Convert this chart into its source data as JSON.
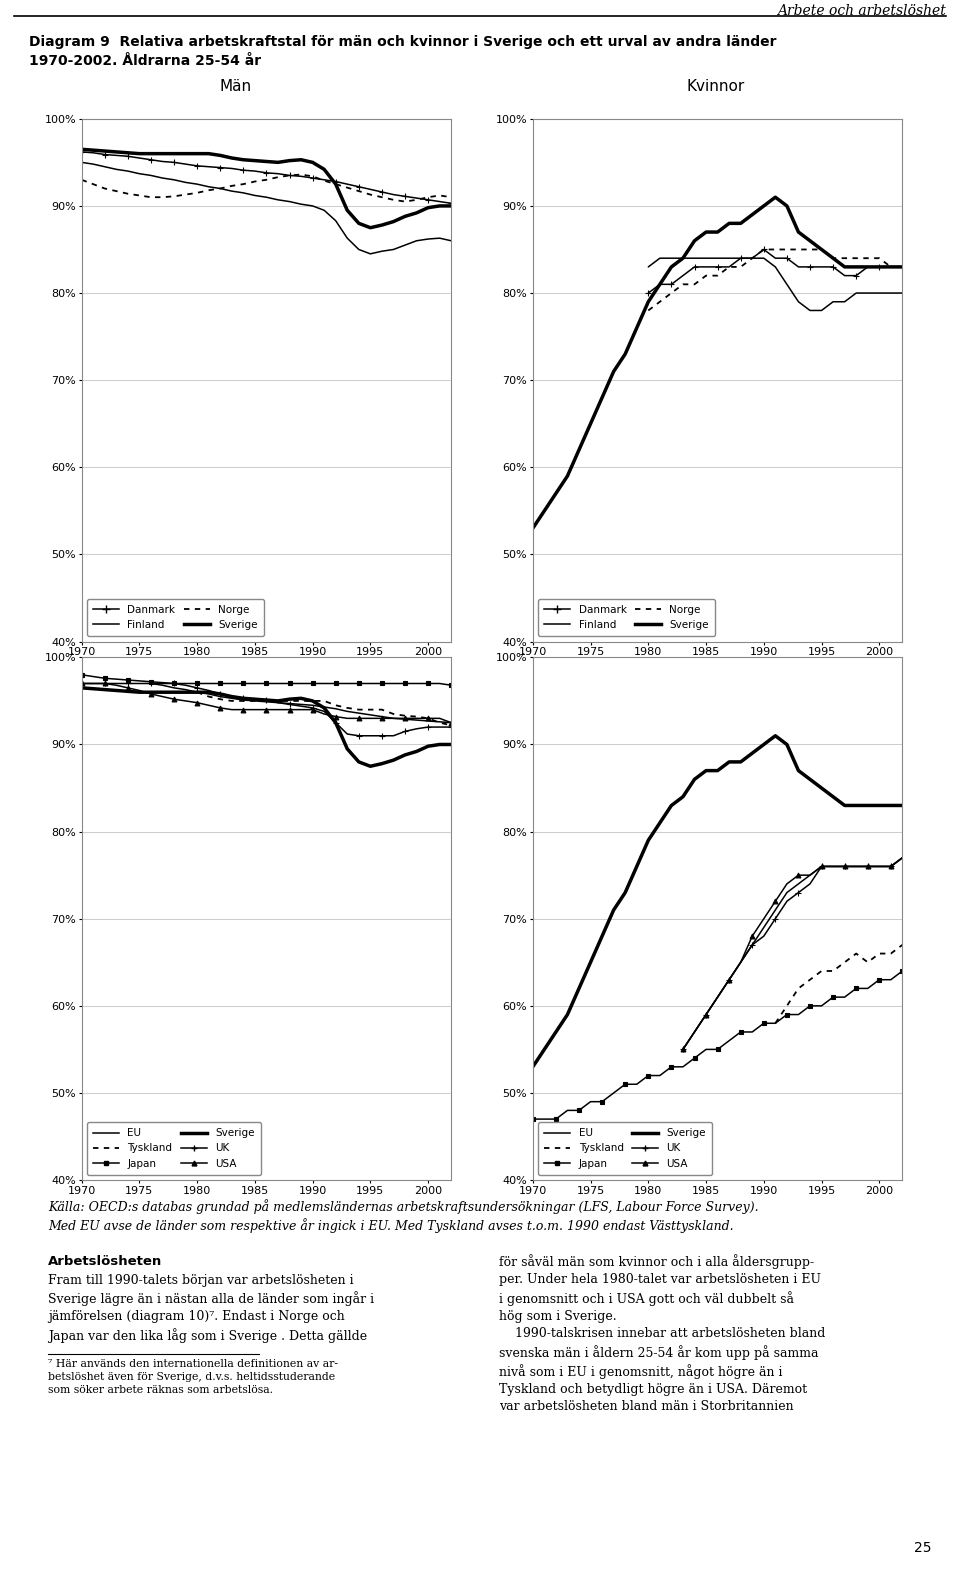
{
  "title_line1": "Diagram 9  Relativa arbetskraftstal för män och kvinnor i Sverige och ett urval av andra länder",
  "title_line2": "1970-2002. Åldrarna 25-54 år",
  "header_right": "Arbete och arbetslöshet",
  "col_label_man": "Män",
  "col_label_kvinna": "Kvinnor",
  "years_full": [
    1970,
    1971,
    1972,
    1973,
    1974,
    1975,
    1976,
    1977,
    1978,
    1979,
    1980,
    1981,
    1982,
    1983,
    1984,
    1985,
    1986,
    1987,
    1988,
    1989,
    1990,
    1991,
    1992,
    1993,
    1994,
    1995,
    1996,
    1997,
    1998,
    1999,
    2000,
    2001,
    2002
  ],
  "nordic_men_Danmark": [
    96.2,
    96.1,
    95.9,
    95.8,
    95.7,
    95.5,
    95.3,
    95.1,
    95.0,
    94.8,
    94.6,
    94.5,
    94.4,
    94.3,
    94.1,
    94.0,
    93.8,
    93.7,
    93.5,
    93.4,
    93.2,
    93.0,
    92.8,
    92.5,
    92.2,
    91.9,
    91.6,
    91.3,
    91.1,
    90.9,
    90.7,
    90.5,
    90.3
  ],
  "nordic_men_Finland": [
    95.0,
    94.8,
    94.5,
    94.2,
    94.0,
    93.7,
    93.5,
    93.2,
    93.0,
    92.7,
    92.5,
    92.2,
    92.0,
    91.7,
    91.5,
    91.2,
    91.0,
    90.7,
    90.5,
    90.2,
    90.0,
    89.5,
    88.3,
    86.3,
    85.0,
    84.5,
    84.8,
    85.0,
    85.5,
    86.0,
    86.2,
    86.3,
    86.0
  ],
  "nordic_men_Norge": [
    93.0,
    92.5,
    92.0,
    91.7,
    91.4,
    91.2,
    91.0,
    91.0,
    91.1,
    91.3,
    91.5,
    91.8,
    92.0,
    92.3,
    92.5,
    92.8,
    93.0,
    93.3,
    93.5,
    93.6,
    93.4,
    92.9,
    92.5,
    92.1,
    91.7,
    91.3,
    91.0,
    90.7,
    90.5,
    90.7,
    91.0,
    91.2,
    91.0
  ],
  "nordic_men_Sverige": [
    96.5,
    96.4,
    96.3,
    96.2,
    96.1,
    96.0,
    96.0,
    96.0,
    96.0,
    96.0,
    96.0,
    96.0,
    95.8,
    95.5,
    95.3,
    95.2,
    95.1,
    95.0,
    95.2,
    95.3,
    95.0,
    94.2,
    92.5,
    89.5,
    88.0,
    87.5,
    87.8,
    88.2,
    88.8,
    89.2,
    89.8,
    90.0,
    90.0
  ],
  "nordic_wom_Sverige": [
    53,
    55,
    57,
    59,
    62,
    65,
    68,
    71,
    73,
    76,
    79,
    81,
    83,
    84,
    86,
    87,
    87,
    88,
    88,
    89,
    90,
    91,
    90,
    87,
    86,
    85,
    84,
    83,
    83,
    83,
    83,
    83,
    83
  ],
  "nordic_wom_Danmark": [
    null,
    null,
    null,
    null,
    null,
    null,
    null,
    null,
    null,
    null,
    80,
    81,
    81,
    82,
    83,
    83,
    83,
    83,
    84,
    84,
    85,
    84,
    84,
    83,
    83,
    83,
    83,
    82,
    82,
    83,
    83,
    83,
    83
  ],
  "nordic_wom_Finland": [
    null,
    null,
    null,
    null,
    null,
    null,
    null,
    null,
    null,
    null,
    83,
    84,
    84,
    84,
    84,
    84,
    84,
    84,
    84,
    84,
    84,
    83,
    81,
    79,
    78,
    78,
    79,
    79,
    80,
    80,
    80,
    80,
    80
  ],
  "nordic_wom_Norge": [
    null,
    null,
    null,
    null,
    null,
    null,
    null,
    null,
    null,
    null,
    78,
    79,
    80,
    81,
    81,
    82,
    82,
    83,
    83,
    84,
    85,
    85,
    85,
    85,
    85,
    85,
    84,
    84,
    84,
    84,
    84,
    83,
    83
  ],
  "intl_men_EU": [
    null,
    null,
    null,
    null,
    null,
    null,
    97.0,
    96.8,
    96.5,
    96.3,
    96.0,
    95.8,
    95.5,
    95.3,
    95.1,
    95.0,
    94.9,
    94.8,
    94.7,
    94.6,
    94.5,
    94.3,
    94.1,
    93.8,
    93.6,
    93.4,
    93.2,
    93.0,
    92.9,
    92.8,
    92.7,
    92.6,
    92.5
  ],
  "intl_men_Japan": [
    98.0,
    97.8,
    97.6,
    97.5,
    97.4,
    97.3,
    97.2,
    97.1,
    97.0,
    97.0,
    97.0,
    97.0,
    97.0,
    97.0,
    97.0,
    97.0,
    97.0,
    97.0,
    97.0,
    97.0,
    97.0,
    97.0,
    97.0,
    97.0,
    97.0,
    97.0,
    97.0,
    97.0,
    97.0,
    97.0,
    97.0,
    97.0,
    96.8
  ],
  "intl_men_UK": [
    97.0,
    97.0,
    97.0,
    97.0,
    97.0,
    97.0,
    97.0,
    97.0,
    97.0,
    96.8,
    96.5,
    96.2,
    95.8,
    95.5,
    95.3,
    95.2,
    95.1,
    94.8,
    94.6,
    94.4,
    94.2,
    93.8,
    92.5,
    91.2,
    91.0,
    91.0,
    91.0,
    91.0,
    91.5,
    91.8,
    92.0,
    92.0,
    92.0
  ],
  "intl_men_DE": [
    null,
    null,
    null,
    null,
    null,
    null,
    null,
    null,
    null,
    null,
    96.0,
    95.5,
    95.2,
    95.0,
    95.0,
    95.0,
    95.0,
    95.0,
    95.0,
    95.0,
    95.0,
    95.0,
    94.5,
    94.2,
    94.0,
    94.0,
    94.0,
    93.5,
    93.3,
    93.2,
    93.0,
    92.5,
    92.2
  ],
  "intl_men_Sverige": [
    96.5,
    96.4,
    96.3,
    96.2,
    96.1,
    96.0,
    96.0,
    96.0,
    96.0,
    96.0,
    96.0,
    96.0,
    95.8,
    95.5,
    95.3,
    95.2,
    95.1,
    95.0,
    95.2,
    95.3,
    95.0,
    94.2,
    92.5,
    89.5,
    88.0,
    87.5,
    87.8,
    88.2,
    88.8,
    89.2,
    89.8,
    90.0,
    90.0
  ],
  "intl_men_USA": [
    97.0,
    97.0,
    97.0,
    96.8,
    96.5,
    96.2,
    95.8,
    95.5,
    95.2,
    95.0,
    94.8,
    94.5,
    94.2,
    94.0,
    94.0,
    94.0,
    94.0,
    94.0,
    94.0,
    94.0,
    94.0,
    93.5,
    93.2,
    93.0,
    93.0,
    93.0,
    93.0,
    93.0,
    93.0,
    93.0,
    93.0,
    93.0,
    92.5
  ],
  "intl_wom_Sverige": [
    53,
    55,
    57,
    59,
    62,
    65,
    68,
    71,
    73,
    76,
    79,
    81,
    83,
    84,
    86,
    87,
    87,
    88,
    88,
    89,
    90,
    91,
    90,
    87,
    86,
    85,
    84,
    83,
    83,
    83,
    83,
    83,
    83
  ],
  "intl_wom_EU": [
    null,
    null,
    null,
    null,
    null,
    null,
    null,
    null,
    null,
    null,
    null,
    null,
    null,
    null,
    null,
    null,
    null,
    null,
    null,
    null,
    null,
    null,
    null,
    null,
    null,
    null,
    null,
    null,
    null,
    null,
    null,
    null,
    null
  ],
  "intl_wom_Japan": [
    47,
    47,
    47,
    48,
    48,
    49,
    49,
    50,
    51,
    51,
    52,
    52,
    53,
    53,
    54,
    55,
    55,
    56,
    57,
    57,
    58,
    58,
    59,
    59,
    60,
    60,
    61,
    61,
    62,
    62,
    63,
    63,
    64
  ],
  "intl_wom_UK": [
    null,
    null,
    null,
    null,
    null,
    null,
    null,
    null,
    null,
    null,
    null,
    null,
    null,
    null,
    null,
    null,
    null,
    null,
    null,
    null,
    null,
    null,
    null,
    null,
    null,
    null,
    null,
    null,
    null,
    null,
    null,
    null,
    null
  ],
  "intl_wom_DE": [
    null,
    null,
    null,
    null,
    null,
    null,
    null,
    null,
    null,
    null,
    null,
    null,
    null,
    null,
    null,
    null,
    null,
    null,
    null,
    null,
    null,
    null,
    null,
    null,
    null,
    null,
    null,
    null,
    null,
    null,
    null,
    null,
    null
  ],
  "intl_wom_USA": [
    null,
    null,
    null,
    null,
    null,
    null,
    null,
    null,
    null,
    null,
    null,
    null,
    null,
    null,
    null,
    null,
    null,
    null,
    null,
    null,
    null,
    null,
    null,
    null,
    null,
    null,
    null,
    null,
    null,
    null,
    null,
    null,
    null
  ],
  "footnote_italic": "Källa: OECD:s databas grundad på medlemsländernas arbetskraftsundersökningar (LFS, Labour Force Survey).",
  "footnote_italic2": "Med EU avse de länder som respektive år ingick i EU. Med Tyskland avses t.o.m. 1990 endast Västtyskland.",
  "section_title": "Arbetslösheten",
  "body_left": "Fram till 1990-talets början var arbetslösheten i Sverige lägre än i nästan alla de länder som ingår i jämförelsen (diagram 10)⁷. Endast i Norge och Japan var den lika låg som i Sverige . Detta gällde",
  "body_right": "för såväl män som kvinnor och i alla åldersgrupper. Under hela 1980-talet var arbetslösheten i EU i genomsnitt och i USA gott och väl dubbelt så hög som i Sverige.\n    1990-talskrisen innebar att arbetslösheten bland svenska män i åldern 25-54 år kom upp på samma nivå som i EU i genomsnitt, något högre än i Tyskland och betydligt högre än i USA. Däremot var arbetslösheten bland män i Storbritannien",
  "footnote_small": "⁷ Här används den internationella definitionen av arbetslöshet även för Sverige, d.v.s. heltidsstuderande som söker arbete räknas som arbetslösa.",
  "page_number": "25"
}
